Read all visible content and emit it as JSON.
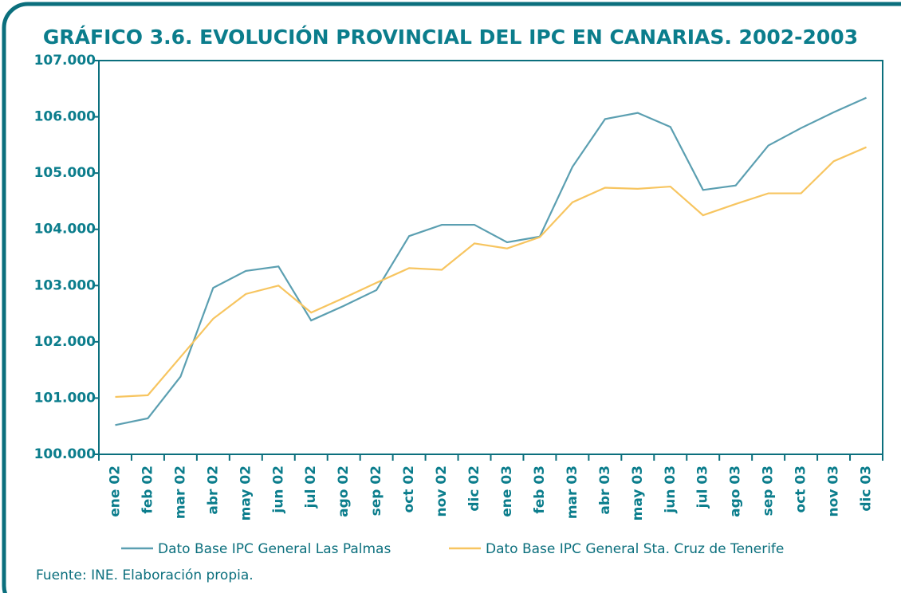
{
  "chart_data": {
    "type": "line",
    "title": "GRÁFICO 3.6. EVOLUCIÓN PROVINCIAL DEL IPC EN CANARIAS. 2002-2003",
    "source": "Fuente: INE. Elaboración propia.",
    "categories": [
      "ene 02",
      "feb 02",
      "mar 02",
      "abr 02",
      "may 02",
      "jun 02",
      "jul 02",
      "ago 02",
      "sep 02",
      "oct 02",
      "nov 02",
      "dic 02",
      "ene 03",
      "feb 03",
      "mar 03",
      "abr 03",
      "may 03",
      "jun 03",
      "jul 03",
      "ago 03",
      "sep 03",
      "oct 03",
      "nov 03",
      "dic 03"
    ],
    "series": [
      {
        "name": "Dato Base IPC General Las Palmas",
        "color": "#5b9fb1",
        "values": [
          100.52,
          100.64,
          101.38,
          102.96,
          103.26,
          103.34,
          102.38,
          102.64,
          102.92,
          103.88,
          104.08,
          104.08,
          103.77,
          103.87,
          105.11,
          105.96,
          106.07,
          105.82,
          104.7,
          104.78,
          105.49,
          105.8,
          106.08,
          106.34
        ]
      },
      {
        "name": "Dato Base IPC General Sta. Cruz de Tenerife",
        "color": "#f7c560",
        "values": [
          101.02,
          101.05,
          101.73,
          102.41,
          102.85,
          103.0,
          102.52,
          102.78,
          103.05,
          103.31,
          103.28,
          103.75,
          103.66,
          103.86,
          104.48,
          104.74,
          104.72,
          104.76,
          104.25,
          104.45,
          104.64,
          104.64,
          105.21,
          105.46
        ]
      }
    ],
    "ylim": [
      100,
      107
    ],
    "yticks": [
      {
        "value": 100,
        "label": "100.000"
      },
      {
        "value": 101,
        "label": "101.000"
      },
      {
        "value": 102,
        "label": "102.000"
      },
      {
        "value": 103,
        "label": "103.000"
      },
      {
        "value": 104,
        "label": "104.000"
      },
      {
        "value": 105,
        "label": "105.000"
      },
      {
        "value": 106,
        "label": "106.000"
      },
      {
        "value": 107,
        "label": "107.000"
      }
    ]
  }
}
